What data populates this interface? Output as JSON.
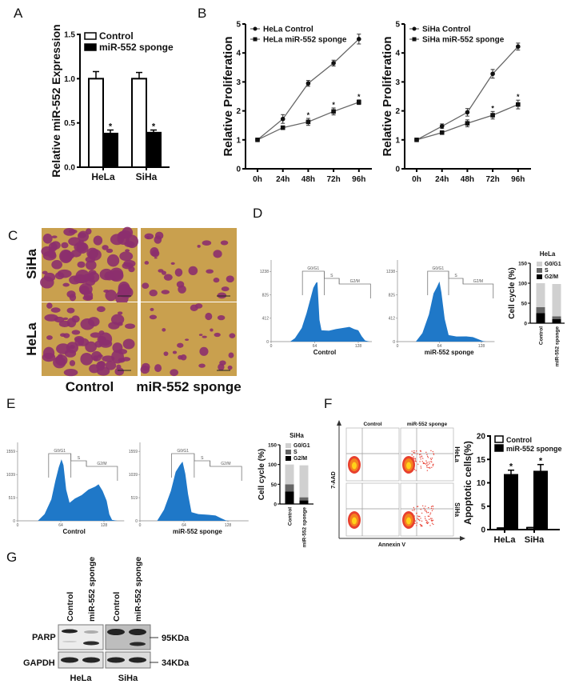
{
  "panels": [
    "A",
    "B",
    "C",
    "D",
    "E",
    "F",
    "G"
  ],
  "colony_images": {
    "rows": [
      "SiHa",
      "HeLa"
    ],
    "columns": [
      "Control",
      "miR-552 sponge"
    ],
    "background_color": "#c9a04e",
    "stain_color": "#8c2f6e"
  },
  "flow_cytometry": {
    "columns": [
      "Control",
      "miR-552 sponge"
    ],
    "rows": [
      "HeLa",
      "SiHa"
    ],
    "xlabel": "Annexin V",
    "ylabel": "7-AAD"
  },
  "western_blot": {
    "lanes": [
      "Control",
      "miR-552 sponge",
      "Control",
      "miR-552 sponge"
    ],
    "groups": [
      "HeLa",
      "SiHa"
    ],
    "rows": [
      "PARP",
      "GAPDH"
    ],
    "markers": [
      "95KDa",
      "34KDa"
    ]
  },
  "chart_data": [
    {
      "panel": "A",
      "type": "bar",
      "categories": [
        "HeLa",
        "SiHa"
      ],
      "series": [
        {
          "name": "Control",
          "values": [
            1.0,
            1.0
          ],
          "errors": [
            0.08,
            0.07
          ],
          "color": "#ffffff",
          "annotations": [
            "",
            ""
          ]
        },
        {
          "name": "miR-552 sponge",
          "values": [
            0.38,
            0.39
          ],
          "errors": [
            0.04,
            0.03
          ],
          "color": "#000000",
          "annotations": [
            "*",
            "*"
          ]
        }
      ],
      "xlabel": "",
      "ylabel": "Relative miR-552 Expression",
      "ylim": [
        0,
        1.5
      ],
      "yticks": [
        "0.0",
        "0.5",
        "1.0",
        "1.5"
      ],
      "legend": "top-left"
    },
    {
      "panel": "B",
      "type": "line",
      "categories": [
        "0h",
        "24h",
        "48h",
        "72h",
        "96h"
      ],
      "series": [
        {
          "name": "HeLa Control",
          "marker": "circle",
          "values": [
            1.0,
            1.72,
            2.95,
            3.65,
            4.48
          ],
          "errors": [
            0.05,
            0.15,
            0.1,
            0.1,
            0.17
          ],
          "annotations": [
            "",
            "",
            "",
            "",
            ""
          ]
        },
        {
          "name": "HeLa miR-552 sponge",
          "marker": "square",
          "values": [
            1.0,
            1.42,
            1.62,
            1.98,
            2.3
          ],
          "errors": [
            0.05,
            0.06,
            0.12,
            0.12,
            0.08
          ],
          "annotations": [
            "",
            "",
            "*",
            "*",
            "*"
          ]
        }
      ],
      "ylabel": "Relative Proliferation",
      "ylim": [
        0,
        5
      ],
      "yticks": [
        "0",
        "1",
        "2",
        "3",
        "4",
        "5"
      ],
      "legend": "top-left"
    },
    {
      "panel": "B",
      "type": "line",
      "categories": [
        "0h",
        "24h",
        "48h",
        "72h",
        "96h"
      ],
      "series": [
        {
          "name": "SiHa Control",
          "marker": "circle",
          "values": [
            1.0,
            1.47,
            1.95,
            3.28,
            4.22
          ],
          "errors": [
            0.05,
            0.08,
            0.13,
            0.15,
            0.12
          ],
          "annotations": [
            "",
            "",
            "",
            "",
            ""
          ]
        },
        {
          "name": "SiHa miR-552 sponge",
          "marker": "square",
          "values": [
            1.0,
            1.25,
            1.57,
            1.85,
            2.22
          ],
          "errors": [
            0.04,
            0.04,
            0.12,
            0.13,
            0.15
          ],
          "annotations": [
            "",
            "",
            "",
            "*",
            "*"
          ]
        }
      ],
      "ylabel": "Relative Proliferation",
      "ylim": [
        0,
        5
      ],
      "yticks": [
        "0",
        "1",
        "2",
        "3",
        "4",
        "5"
      ],
      "legend": "top-left"
    },
    {
      "panel": "D",
      "type": "area",
      "label": "Control",
      "color": "#1f78c8",
      "x": [
        28,
        35,
        45,
        52,
        58,
        62,
        66,
        68,
        71,
        74,
        85,
        95,
        105,
        115,
        122,
        128,
        133,
        138,
        145
      ],
      "y": [
        0,
        60,
        250,
        500,
        800,
        950,
        1080,
        1050,
        400,
        200,
        200,
        220,
        250,
        260,
        230,
        200,
        100,
        20,
        0
      ],
      "xticks": [
        "0",
        "64",
        "128"
      ],
      "yticks": [
        "0",
        "412",
        "825",
        "1238"
      ],
      "xlim": [
        0,
        148
      ],
      "ylim": [
        0,
        1440
      ],
      "gates": [
        {
          "name": "G0/G1",
          "range": [
            46,
            78
          ]
        },
        {
          "name": "S",
          "range": [
            78,
            100
          ]
        },
        {
          "name": "G2/M",
          "range": [
            100,
            146
          ]
        }
      ]
    },
    {
      "panel": "D",
      "type": "area",
      "label": "miR-552 sponge",
      "color": "#1f78c8",
      "x": [
        28,
        38,
        48,
        55,
        60,
        64,
        67,
        72,
        78,
        90,
        105,
        115,
        122,
        130,
        135
      ],
      "y": [
        0,
        150,
        500,
        850,
        1000,
        1060,
        900,
        400,
        120,
        90,
        95,
        80,
        50,
        10,
        0
      ],
      "xticks": [
        "0",
        "64",
        "128"
      ],
      "yticks": [
        "0",
        "412",
        "825",
        "1238"
      ],
      "xlim": [
        0,
        148
      ],
      "ylim": [
        0,
        1440
      ],
      "gates": [
        {
          "name": "G0/G1",
          "range": [
            46,
            78
          ]
        },
        {
          "name": "S",
          "range": [
            78,
            100
          ]
        },
        {
          "name": "G2/M",
          "range": [
            100,
            146
          ]
        }
      ]
    },
    {
      "panel": "D",
      "type": "bar",
      "stacked": true,
      "title": "HeLa",
      "categories": [
        "Control",
        "miR-552 sponge"
      ],
      "series": [
        {
          "name": "G2/M",
          "values": [
            25,
            10
          ],
          "color": "#000000"
        },
        {
          "name": "S",
          "values": [
            15,
            7
          ],
          "color": "#666666"
        },
        {
          "name": "G0/G1",
          "values": [
            60,
            81
          ],
          "color": "#d0d0d0"
        }
      ],
      "ylabel": "Cell cycle (%)",
      "ylim": [
        0,
        150
      ],
      "yticks": [
        "0",
        "50",
        "100",
        "150"
      ],
      "legend": "top-right"
    },
    {
      "panel": "E",
      "type": "area",
      "label": "Control",
      "color": "#1f78c8",
      "x": [
        30,
        40,
        50,
        56,
        61,
        65,
        68,
        72,
        77,
        85,
        95,
        105,
        115,
        120,
        126,
        132,
        136,
        140,
        148
      ],
      "y": [
        0,
        150,
        500,
        900,
        1250,
        1380,
        1300,
        700,
        420,
        500,
        600,
        700,
        800,
        820,
        700,
        450,
        150,
        20,
        0
      ],
      "xticks": [
        "0",
        "64",
        "128"
      ],
      "yticks": [
        "0",
        "519",
        "1039",
        "1559"
      ],
      "xlim": [
        0,
        158
      ],
      "ylim": [
        0,
        1760
      ],
      "gates": [
        {
          "name": "G0/G1",
          "range": [
            46,
            79
          ]
        },
        {
          "name": "S",
          "range": [
            79,
            102
          ]
        },
        {
          "name": "G2/M",
          "range": [
            102,
            148
          ]
        }
      ]
    },
    {
      "panel": "E",
      "type": "area",
      "label": "miR-552 sponge",
      "color": "#1f78c8",
      "x": [
        25,
        35,
        45,
        52,
        58,
        62,
        66,
        70,
        75,
        85,
        100,
        110,
        118,
        125,
        130
      ],
      "y": [
        0,
        250,
        700,
        1100,
        1300,
        1330,
        1100,
        600,
        200,
        150,
        140,
        120,
        60,
        10,
        0
      ],
      "xticks": [
        "0",
        "64",
        "128"
      ],
      "yticks": [
        "0",
        "519",
        "1039",
        "1559"
      ],
      "xlim": [
        0,
        158
      ],
      "ylim": [
        0,
        1760
      ],
      "gates": [
        {
          "name": "G0/G1",
          "range": [
            46,
            79
          ]
        },
        {
          "name": "S",
          "range": [
            79,
            102
          ]
        },
        {
          "name": "G2/M",
          "range": [
            102,
            148
          ]
        }
      ]
    },
    {
      "panel": "E",
      "type": "bar",
      "stacked": true,
      "title": "SiHa",
      "categories": [
        "Control",
        "miR-552 sponge"
      ],
      "series": [
        {
          "name": "G2/M",
          "values": [
            32,
            9
          ],
          "color": "#000000"
        },
        {
          "name": "S",
          "values": [
            18,
            8
          ],
          "color": "#666666"
        },
        {
          "name": "G0/G1",
          "values": [
            50,
            81
          ],
          "color": "#d0d0d0"
        }
      ],
      "ylabel": "Cell cycle (%)",
      "ylim": [
        0,
        150
      ],
      "yticks": [
        "0",
        "50",
        "100",
        "150"
      ],
      "legend": "top-right"
    },
    {
      "panel": "F",
      "type": "bar",
      "categories": [
        "HeLa",
        "SiHa"
      ],
      "series": [
        {
          "name": "Control",
          "values": [
            0.3,
            0.4
          ],
          "errors": [
            0.05,
            0.05
          ],
          "color": "#ffffff",
          "annotations": [
            "",
            ""
          ]
        },
        {
          "name": "miR-552 sponge",
          "values": [
            11.7,
            12.4
          ],
          "errors": [
            1.0,
            1.5
          ],
          "color": "#000000",
          "annotations": [
            "*",
            "*"
          ]
        }
      ],
      "ylabel": "Apoptotic cells(%)",
      "ylim": [
        0,
        20
      ],
      "yticks": [
        "0",
        "5",
        "10",
        "15",
        "20"
      ],
      "legend": "top-right"
    }
  ]
}
